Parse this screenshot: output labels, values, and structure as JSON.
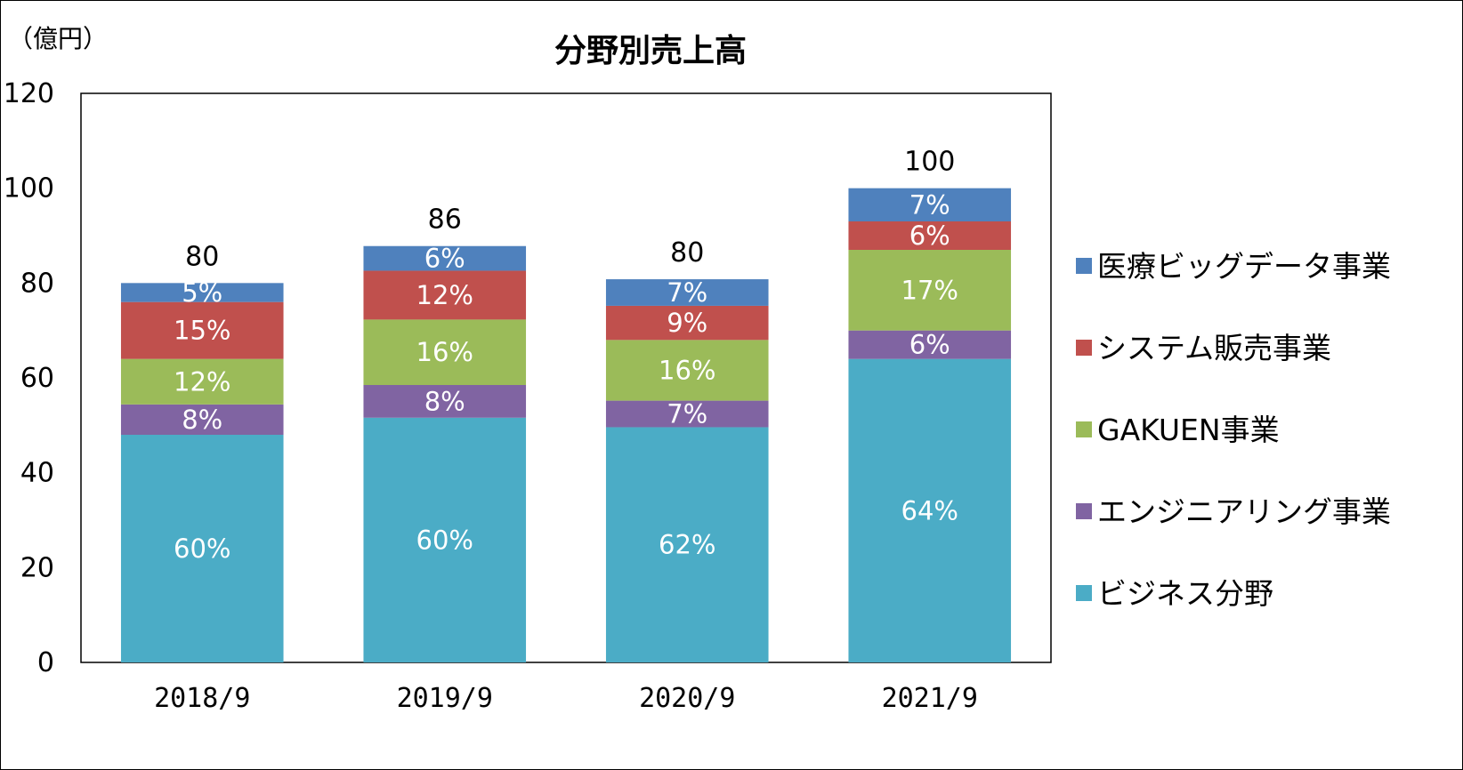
{
  "chart_data": {
    "type": "bar",
    "stacked": true,
    "title": "分野別売上高",
    "unit": "（億円）",
    "categories": [
      "2018/9",
      "2019/9",
      "2020/9",
      "2021/9"
    ],
    "totals_shown": [
      "80",
      "86",
      "80",
      "100"
    ],
    "ylim": [
      0,
      120
    ],
    "yticks": [
      0,
      20,
      40,
      60,
      80,
      100,
      120
    ],
    "grid": false,
    "legend_position": "right",
    "series": [
      {
        "name": "ビジネス分野",
        "color": "#4BACC6",
        "values": [
          48,
          51.6,
          49.6,
          64
        ],
        "labels": [
          "60%",
          "60%",
          "62%",
          "64%"
        ]
      },
      {
        "name": "エンジニアリング事業",
        "color": "#8064A2",
        "values": [
          6.4,
          6.9,
          5.6,
          6
        ],
        "labels": [
          "8%",
          "8%",
          "7%",
          "6%"
        ]
      },
      {
        "name": "GAKUEN事業",
        "color": "#9BBB59",
        "values": [
          9.6,
          13.8,
          12.8,
          17
        ],
        "labels": [
          "12%",
          "16%",
          "16%",
          "17%"
        ]
      },
      {
        "name": "システム販売事業",
        "color": "#C0504D",
        "values": [
          12,
          10.3,
          7.2,
          6
        ],
        "labels": [
          "15%",
          "12%",
          "9%",
          "6%"
        ]
      },
      {
        "name": "医療ビッグデータ事業",
        "color": "#4F81BD",
        "values": [
          4,
          5.2,
          5.6,
          7
        ],
        "labels": [
          "5%",
          "6%",
          "7%",
          "7%"
        ]
      }
    ]
  }
}
